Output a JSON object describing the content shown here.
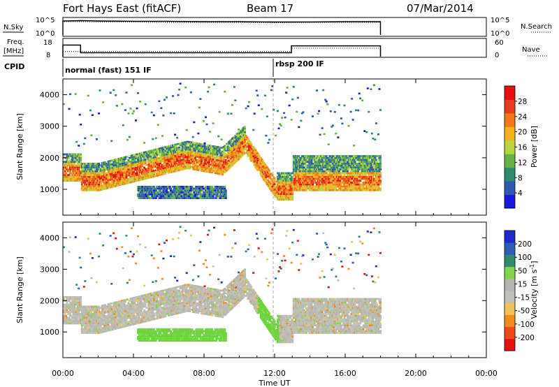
{
  "header": {
    "title": "Fort Hays East (fitACF)",
    "beam": "Beam 17",
    "date": "07/Mar/2014"
  },
  "colors": {
    "power_scale": [
      "#1a1adc",
      "#2f59b0",
      "#2f8a72",
      "#66b244",
      "#b7d63d",
      "#f4b21d",
      "#f07a1a",
      "#e63d1b",
      "#e51010"
    ],
    "velocity_scale": [
      "#e51010",
      "#f04a1a",
      "#f08c1e",
      "#f2c25a",
      "#c0c0b8",
      "#b6b6ae",
      "#84d44a",
      "#2e8c6c",
      "#2b5fb4",
      "#1e2ac8"
    ],
    "gray": "#bdbdb5",
    "green": "#6cd43a"
  },
  "chart_data": [
    {
      "type": "line",
      "name": "nsky-panel",
      "ylabel_left": "N.Sky",
      "ylabel_right": "N.Search",
      "left_ticks": [
        "10^5",
        "10^0"
      ],
      "right_ticks": [
        "10^5",
        "10^0"
      ],
      "x_hours": [
        0,
        1,
        2,
        4,
        6,
        8,
        10,
        12,
        14,
        16,
        18
      ],
      "series": [
        {
          "values": [
            4.2,
            4.3,
            4.2,
            4.1,
            4.1,
            4.0,
            4.0,
            3.9,
            3.9,
            4.0,
            4.0
          ]
        },
        {
          "values": [
            4.0,
            4.0,
            3.9,
            3.9,
            3.8,
            3.8,
            3.8,
            3.7,
            3.8,
            3.8,
            3.8
          ]
        }
      ],
      "ylim": [
        0,
        5
      ]
    },
    {
      "type": "line",
      "name": "freq-panel",
      "ylabel_left": [
        "Freq.",
        "[MHz]"
      ],
      "ylabel_right": "Nave",
      "left_ticks": [
        "18",
        "8"
      ],
      "right_ticks": [
        "60",
        "0"
      ],
      "steps": [
        {
          "from": 0.0,
          "to": 1.0,
          "freq": 15.5
        },
        {
          "from": 1.0,
          "to": 12.95,
          "freq": 10.5
        },
        {
          "from": 12.95,
          "to": 18.0,
          "freq": 15.0
        }
      ],
      "nave": [
        {
          "from": 0.0,
          "to": 12.95,
          "value": 20
        },
        {
          "from": 12.95,
          "to": 18.0,
          "value": 33
        }
      ],
      "ylim": [
        8,
        18
      ]
    },
    {
      "type": "table",
      "name": "cpid-panel",
      "label": "CPID",
      "segments": [
        {
          "start": 0.0,
          "label": "normal (fast) 151 IF"
        },
        {
          "start": 12.0,
          "label": "rbsp 200 IF"
        }
      ]
    },
    {
      "type": "heatmap",
      "name": "power-panel",
      "ylabel": "Slant Range [km]",
      "yticks": [
        1000,
        2000,
        3000,
        4000
      ],
      "ylim": [
        180,
        4500
      ],
      "colorbar_label": "Power [dB]",
      "colorbar_ticks": [
        4,
        8,
        12,
        16,
        20,
        24,
        28
      ]
    },
    {
      "type": "heatmap",
      "name": "velocity-panel",
      "ylabel": "Slant Range [km]",
      "yticks": [
        1000,
        2000,
        3000,
        4000
      ],
      "ylim": [
        180,
        4500
      ],
      "colorbar_label": "Velocity [m s^-1]",
      "colorbar_ticks": [
        -200,
        -100,
        -50,
        -15,
        15,
        50,
        100,
        200
      ]
    }
  ],
  "xaxis": {
    "label": "Time UT",
    "ticks": [
      "00:00",
      "04:00",
      "08:00",
      "12:00",
      "16:00",
      "20:00",
      "00:00"
    ],
    "xlim": [
      0,
      24
    ]
  }
}
